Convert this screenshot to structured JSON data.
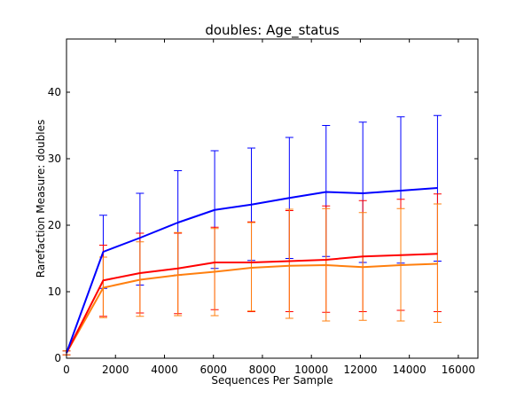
{
  "chart_data": {
    "type": "line",
    "title": "doubles: Age_status",
    "xlabel": "Sequences Per Sample",
    "ylabel": "Rarefaction Measure: doubles",
    "xlim": [
      0,
      16800
    ],
    "ylim": [
      0,
      48
    ],
    "xticks": [
      0,
      2000,
      4000,
      6000,
      8000,
      10000,
      12000,
      14000,
      16000
    ],
    "yticks": [
      0,
      10,
      20,
      30,
      40
    ],
    "grid": false,
    "legend": "none",
    "x": [
      1,
      1500,
      3000,
      4550,
      6050,
      7550,
      9100,
      10600,
      12100,
      13650,
      15150
    ],
    "series": [
      {
        "color": "#0000ff",
        "values": [
          0.8,
          16.0,
          18.1,
          20.4,
          22.3,
          23.1,
          24.1,
          25.0,
          24.8,
          25.2,
          25.6
        ],
        "err_low": [
          0.5,
          10.5,
          11.0,
          12.5,
          13.5,
          14.7,
          15.0,
          15.3,
          14.4,
          14.3,
          14.6
        ],
        "err_high": [
          1.1,
          21.5,
          24.8,
          28.2,
          31.2,
          31.6,
          33.2,
          35.0,
          35.5,
          36.3,
          36.5
        ]
      },
      {
        "color": "#ff0000",
        "values": [
          0.8,
          11.7,
          12.8,
          13.5,
          14.4,
          14.4,
          14.6,
          14.8,
          15.3,
          15.5,
          15.7
        ],
        "err_low": [
          0.5,
          6.3,
          6.8,
          6.7,
          7.3,
          7.0,
          7.0,
          6.9,
          7.0,
          7.2,
          7.0
        ],
        "err_high": [
          1.1,
          17.0,
          18.8,
          18.8,
          19.7,
          20.5,
          22.2,
          22.9,
          23.7,
          23.9,
          24.7
        ]
      },
      {
        "color": "#ff7f0e",
        "values": [
          0.8,
          10.6,
          11.8,
          12.5,
          13.0,
          13.6,
          13.9,
          14.0,
          13.7,
          14.0,
          14.2
        ],
        "err_low": [
          0.5,
          6.1,
          6.3,
          6.4,
          6.4,
          7.1,
          6.0,
          5.6,
          5.7,
          5.6,
          5.4
        ],
        "err_high": [
          1.1,
          15.2,
          17.5,
          18.9,
          19.5,
          20.4,
          22.4,
          22.5,
          21.9,
          22.5,
          23.2
        ]
      }
    ]
  }
}
